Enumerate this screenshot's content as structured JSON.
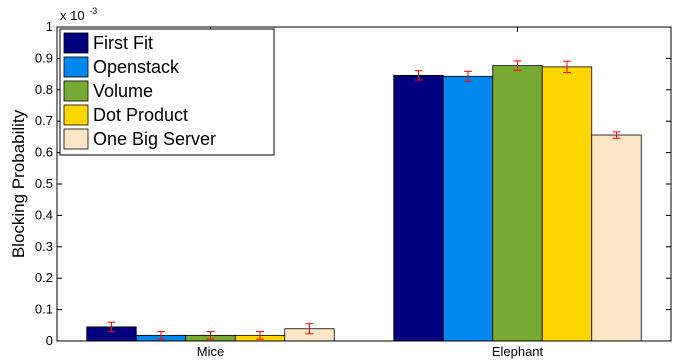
{
  "chart_data": {
    "type": "bar",
    "title": "",
    "xlabel": "",
    "ylabel": "Blocking Probability",
    "y_multiplier": "x 10",
    "y_multiplier_exponent": "-3",
    "ylim": [
      0,
      1
    ],
    "yticks": [
      "0",
      "0.1",
      "0.2",
      "0.3",
      "0.4",
      "0.5",
      "0.6",
      "0.7",
      "0.8",
      "0.9",
      "1"
    ],
    "categories": [
      "Mice",
      "Elephant"
    ],
    "series": [
      {
        "name": "First Fit",
        "color": "#00007f",
        "values": [
          0.045,
          0.846
        ],
        "errors": [
          0.015,
          0.015
        ]
      },
      {
        "name": "Openstack",
        "color": "#0088ee",
        "values": [
          0.018,
          0.843
        ],
        "errors": [
          0.012,
          0.016
        ]
      },
      {
        "name": "Volume",
        "color": "#77aa33",
        "values": [
          0.018,
          0.877
        ],
        "errors": [
          0.012,
          0.015
        ]
      },
      {
        "name": "Dot Product",
        "color": "#ffd500",
        "values": [
          0.018,
          0.873
        ],
        "errors": [
          0.012,
          0.018
        ]
      },
      {
        "name": "One Big Server",
        "color": "#fde6c6",
        "values": [
          0.039,
          0.656
        ],
        "errors": [
          0.016,
          0.01
        ]
      }
    ],
    "error_bar_color": "#ff0000",
    "legend_position": "top-left",
    "grid": false
  }
}
